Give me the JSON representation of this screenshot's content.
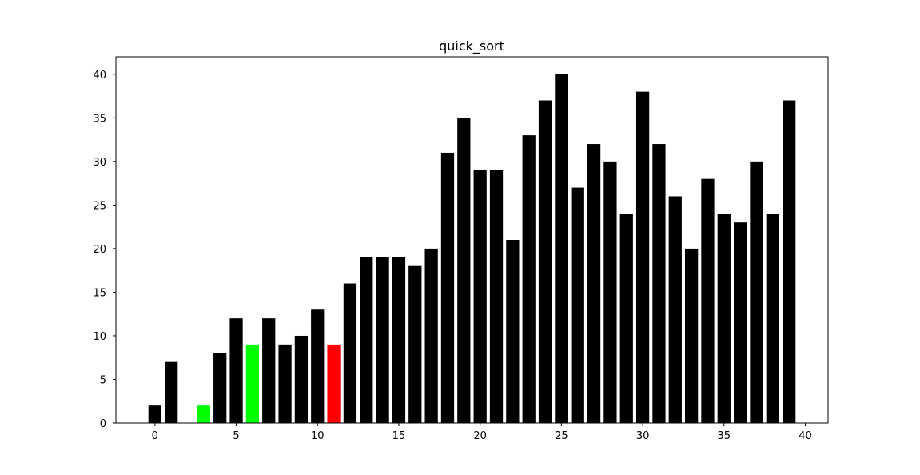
{
  "chart_data": {
    "type": "bar",
    "title": "quick_sort",
    "xlabel": "",
    "ylabel": "",
    "x": [
      0,
      1,
      2,
      3,
      4,
      5,
      6,
      7,
      8,
      9,
      10,
      11,
      12,
      13,
      14,
      15,
      16,
      17,
      18,
      19,
      20,
      21,
      22,
      23,
      24,
      25,
      26,
      27,
      28,
      29,
      30,
      31,
      32,
      33,
      34,
      35,
      36,
      37,
      38,
      39
    ],
    "values": [
      2,
      7,
      0,
      2,
      8,
      12,
      9,
      12,
      9,
      10,
      13,
      9,
      16,
      19,
      19,
      19,
      18,
      20,
      31,
      35,
      29,
      29,
      21,
      33,
      37,
      40,
      27,
      32,
      30,
      24,
      38,
      32,
      26,
      20,
      28,
      24,
      23,
      30,
      24,
      37
    ],
    "colors": [
      "#000000",
      "#000000",
      "#000000",
      "#00ff00",
      "#000000",
      "#000000",
      "#00ff00",
      "#000000",
      "#000000",
      "#000000",
      "#000000",
      "#ff0000",
      "#000000",
      "#000000",
      "#000000",
      "#000000",
      "#000000",
      "#000000",
      "#000000",
      "#000000",
      "#000000",
      "#000000",
      "#000000",
      "#000000",
      "#000000",
      "#000000",
      "#000000",
      "#000000",
      "#000000",
      "#000000",
      "#000000",
      "#000000",
      "#000000",
      "#000000",
      "#000000",
      "#000000",
      "#000000",
      "#000000",
      "#000000",
      "#000000"
    ],
    "xlim": [
      -2.4,
      41.4
    ],
    "ylim": [
      0,
      42
    ],
    "xticks": [
      0,
      5,
      10,
      15,
      20,
      25,
      30,
      35,
      40
    ],
    "yticks": [
      0,
      5,
      10,
      15,
      20,
      25,
      30,
      35,
      40
    ],
    "bar_width_units": 0.8,
    "grid": false,
    "legend": "none"
  }
}
